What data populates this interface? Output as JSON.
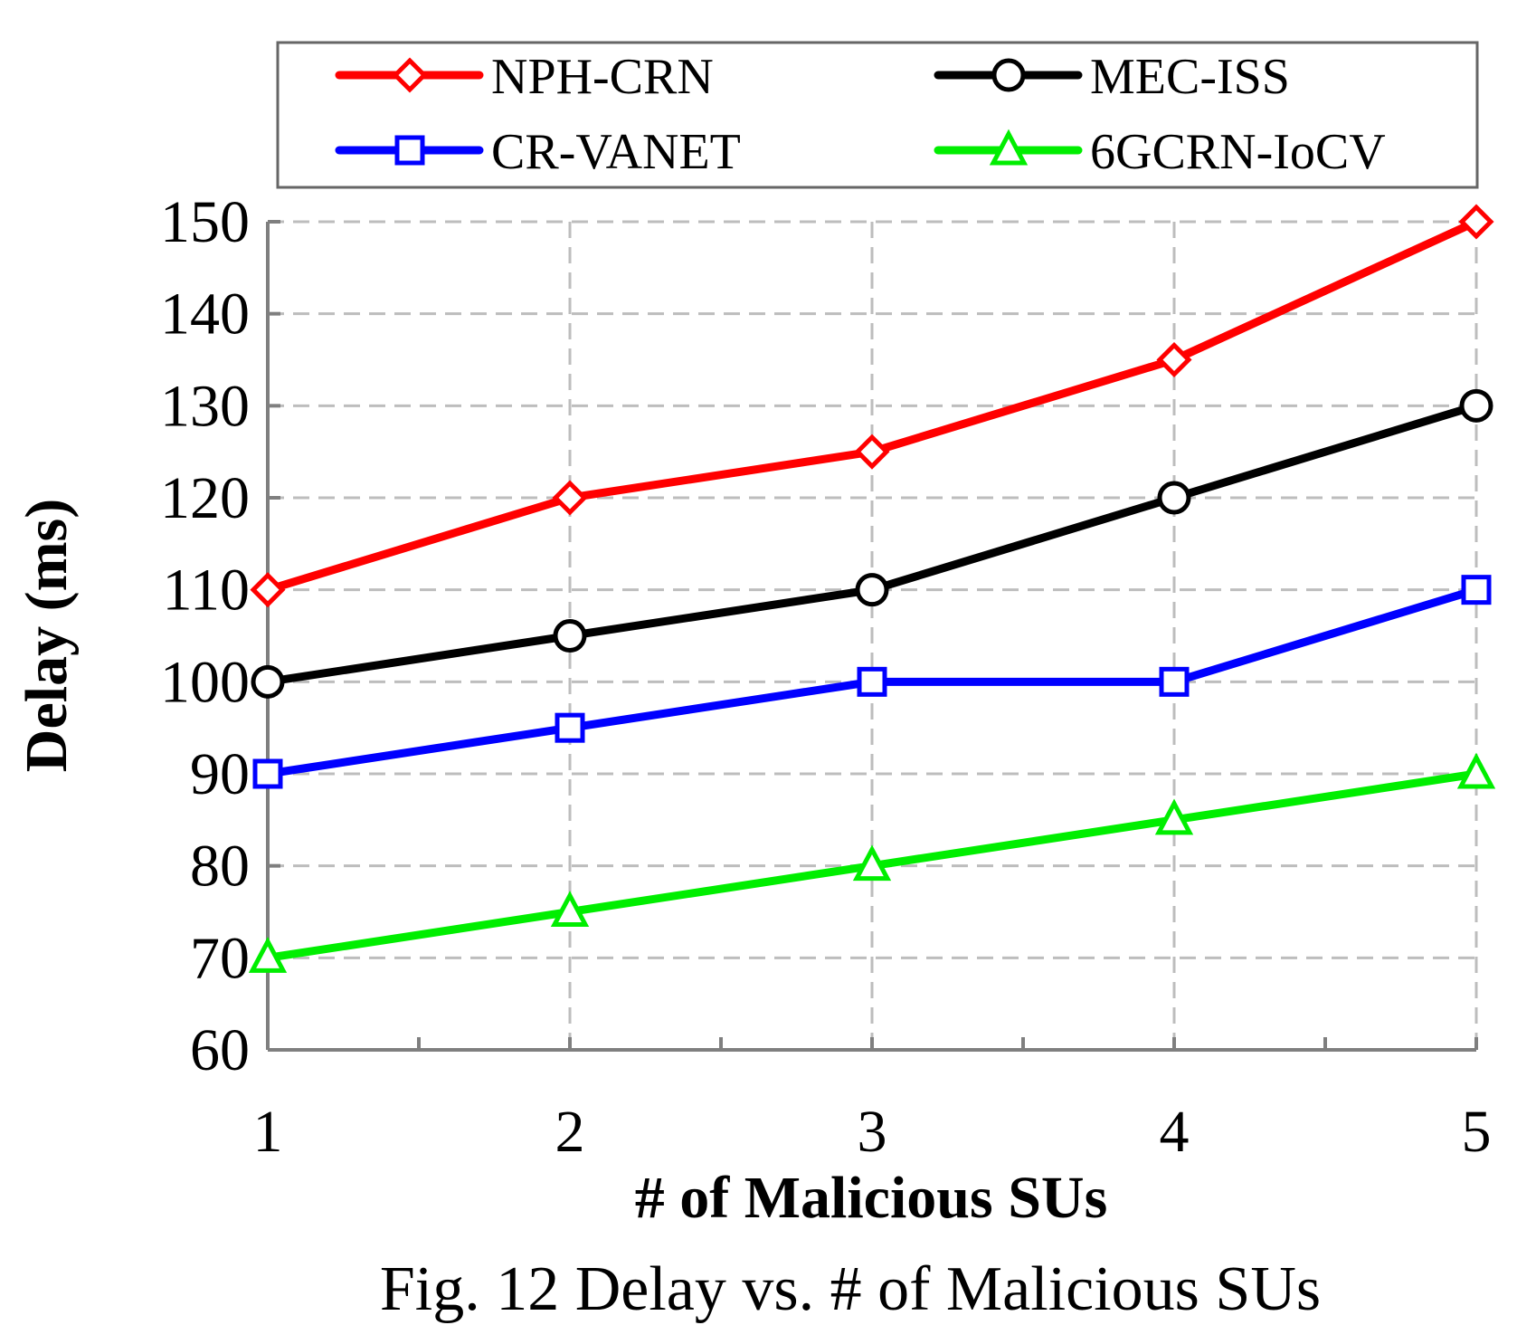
{
  "chart_data": {
    "type": "line",
    "title": "",
    "caption": "Fig. 12 Delay vs. # of Malicious SUs",
    "xlabel": "# of Malicious SUs",
    "ylabel": "Delay (ms)",
    "x": [
      1,
      2,
      3,
      4,
      5
    ],
    "x_tick_labels": [
      "1",
      "2",
      "3",
      "4",
      "5"
    ],
    "xlim": [
      1,
      5
    ],
    "ylim": [
      60,
      150
    ],
    "y_ticks": [
      60,
      70,
      80,
      90,
      100,
      110,
      120,
      130,
      140,
      150
    ],
    "y_tick_labels": [
      "60",
      "70",
      "80",
      "90",
      "100",
      "110",
      "120",
      "130",
      "140",
      "150"
    ],
    "grid": true,
    "legend_position": "top",
    "series": [
      {
        "name": "NPH-CRN",
        "color": "#ff0000",
        "marker": "diamond",
        "values": [
          110,
          120,
          125,
          135,
          150
        ]
      },
      {
        "name": "MEC-ISS",
        "color": "#000000",
        "marker": "circle",
        "values": [
          100,
          105,
          110,
          120,
          130
        ]
      },
      {
        "name": "CR-VANET",
        "color": "#0000ff",
        "marker": "square",
        "values": [
          90,
          95,
          100,
          100,
          110
        ]
      },
      {
        "name": "6GCRN-IoCV",
        "color": "#00ee00",
        "marker": "triangle",
        "values": [
          70,
          75,
          80,
          85,
          90
        ]
      }
    ]
  }
}
